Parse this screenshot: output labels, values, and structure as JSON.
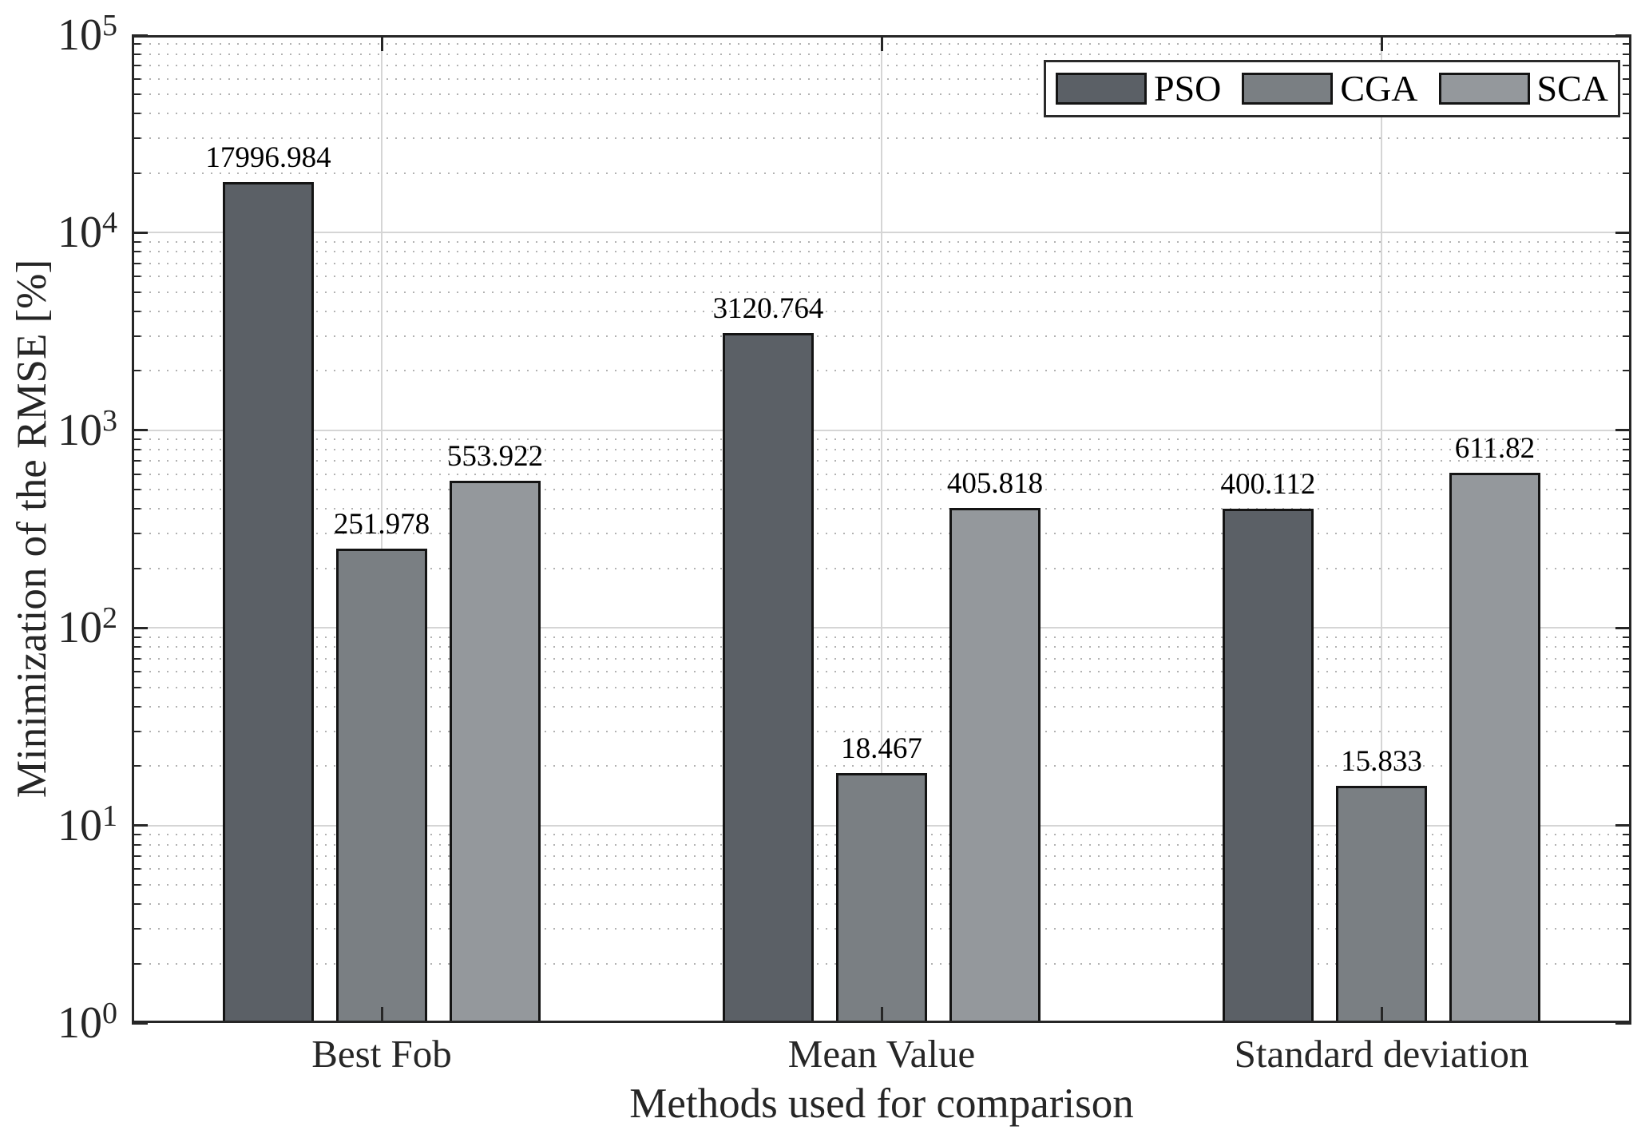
{
  "chart_data": {
    "type": "bar",
    "title": "",
    "xlabel": "Methods used for comparison",
    "ylabel": "Minimization of the RMSE [%]",
    "y_scale": "log10",
    "ylim": [
      1,
      100000
    ],
    "y_tick_exponents": [
      0,
      1,
      2,
      3,
      4,
      5
    ],
    "y_tick_labels": [
      "10^0",
      "10^1",
      "10^2",
      "10^3",
      "10^4",
      "10^5"
    ],
    "grid": {
      "major": true,
      "minor_dotted": true,
      "x_gridlines_at_ticks": true
    },
    "legend_position": "top-right",
    "categories": [
      "Best Fob",
      "Mean Value",
      "Standard deviation"
    ],
    "series": [
      {
        "name": "PSO",
        "color": "#5b6066",
        "values": [
          17996.984,
          3120.764,
          400.112
        ],
        "labels": [
          "17996.984",
          "3120.764",
          "400.112"
        ]
      },
      {
        "name": "CGA",
        "color": "#7a7f83",
        "values": [
          251.978,
          18.467,
          15.833
        ],
        "labels": [
          "251.978",
          "18.467",
          "15.833"
        ]
      },
      {
        "name": "SCA",
        "color": "#94989c",
        "values": [
          553.922,
          405.818,
          611.82
        ],
        "labels": [
          "553.922",
          "405.818",
          "611.82"
        ]
      }
    ],
    "colors": {
      "axis": "#262626",
      "grid_major": "#d5d5d5",
      "grid_minor": "#b2b2b2",
      "bar_edge": "#141414",
      "background": "#ffffff",
      "label_text": "#000000"
    }
  }
}
